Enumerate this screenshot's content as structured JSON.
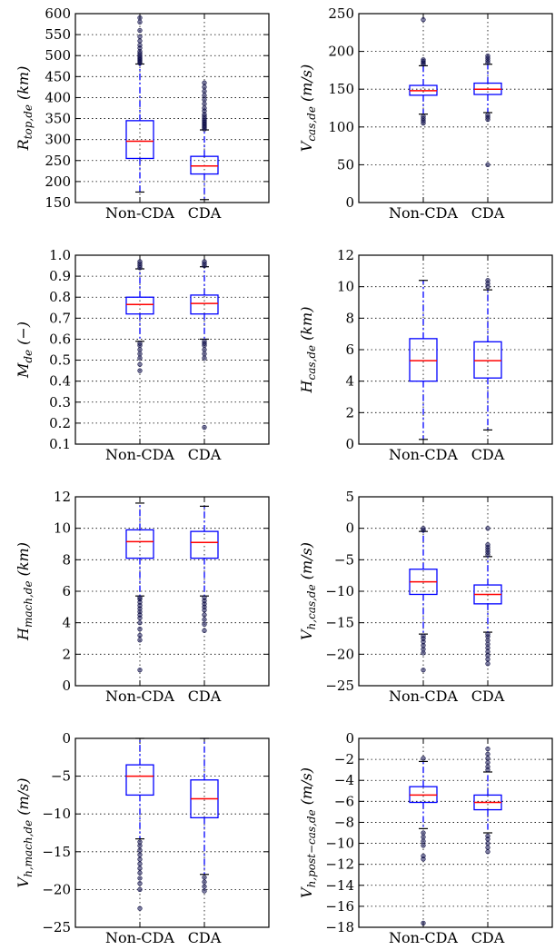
{
  "chart_data": [
    {
      "type": "boxplot",
      "ylabel": {
        "main": "R",
        "sub": "top,de",
        "unit": "(km)"
      },
      "ylim": [
        150,
        600
      ],
      "yticks": [
        150,
        200,
        250,
        300,
        350,
        400,
        450,
        500,
        550,
        600
      ],
      "grid": true,
      "categories": [
        "Non-CDA",
        "CDA"
      ],
      "boxes": [
        {
          "category": "Non-CDA",
          "q1": 255,
          "median": 296,
          "q3": 345,
          "whisker_low": 175,
          "whisker_high": 480,
          "outliers": [
            482,
            485,
            488,
            490,
            493,
            496,
            500,
            505,
            510,
            518,
            525,
            535,
            545,
            560,
            580,
            590
          ]
        },
        {
          "category": "CDA",
          "q1": 218,
          "median": 237,
          "q3": 260,
          "whisker_low": 157,
          "whisker_high": 323,
          "outliers": [
            325,
            328,
            331,
            334,
            337,
            340,
            343,
            346,
            350,
            355,
            360,
            368,
            375,
            385,
            395,
            405,
            415,
            425,
            435
          ]
        }
      ]
    },
    {
      "type": "boxplot",
      "ylabel": {
        "main": "V",
        "sub": "cas,de",
        "unit": "(m/s)"
      },
      "ylim": [
        0,
        250
      ],
      "yticks": [
        0,
        50,
        100,
        150,
        200,
        250
      ],
      "grid": true,
      "categories": [
        "Non-CDA",
        "CDA"
      ],
      "boxes": [
        {
          "category": "Non-CDA",
          "q1": 142,
          "median": 148,
          "q3": 155,
          "whisker_low": 117,
          "whisker_high": 181,
          "outliers": [
            105,
            108,
            111,
            114,
            183,
            185,
            187,
            189,
            242
          ]
        },
        {
          "category": "CDA",
          "q1": 143,
          "median": 150,
          "q3": 158,
          "whisker_low": 119,
          "whisker_high": 183,
          "outliers": [
            50,
            110,
            113,
            116,
            185,
            188,
            191,
            194
          ]
        }
      ]
    },
    {
      "type": "boxplot",
      "ylabel": {
        "main": "M",
        "sub": "de",
        "unit": "(−)"
      },
      "ylim": [
        0.1,
        1.0
      ],
      "yticks": [
        0.1,
        0.2,
        0.3,
        0.4,
        0.5,
        0.6,
        0.7,
        0.8,
        0.9,
        1.0
      ],
      "grid": true,
      "categories": [
        "Non-CDA",
        "CDA"
      ],
      "boxes": [
        {
          "category": "Non-CDA",
          "q1": 0.72,
          "median": 0.765,
          "q3": 0.8,
          "whisker_low": 0.59,
          "whisker_high": 0.935,
          "outliers": [
            0.45,
            0.48,
            0.51,
            0.53,
            0.55,
            0.57,
            0.58,
            0.94,
            0.95,
            0.96,
            0.97
          ]
        },
        {
          "category": "CDA",
          "q1": 0.72,
          "median": 0.77,
          "q3": 0.81,
          "whisker_low": 0.6,
          "whisker_high": 0.945,
          "outliers": [
            0.18,
            0.51,
            0.53,
            0.55,
            0.57,
            0.58,
            0.59,
            0.95,
            0.96,
            0.97
          ]
        }
      ]
    },
    {
      "type": "boxplot",
      "ylabel": {
        "main": "H",
        "sub": "cas,de",
        "unit": "(km)"
      },
      "ylim": [
        0,
        12
      ],
      "yticks": [
        0,
        2,
        4,
        6,
        8,
        10,
        12
      ],
      "grid": true,
      "categories": [
        "Non-CDA",
        "CDA"
      ],
      "boxes": [
        {
          "category": "Non-CDA",
          "q1": 4.0,
          "median": 5.3,
          "q3": 6.7,
          "whisker_low": 0.3,
          "whisker_high": 10.4,
          "outliers": []
        },
        {
          "category": "CDA",
          "q1": 4.2,
          "median": 5.3,
          "q3": 6.5,
          "whisker_low": 0.9,
          "whisker_high": 9.8,
          "outliers": [
            10.0,
            10.2,
            10.4
          ]
        }
      ]
    },
    {
      "type": "boxplot",
      "ylabel": {
        "main": "H",
        "sub": "mach,de",
        "unit": "(km)"
      },
      "ylim": [
        0,
        12
      ],
      "yticks": [
        0,
        2,
        4,
        6,
        8,
        10,
        12
      ],
      "grid": true,
      "categories": [
        "Non-CDA",
        "CDA"
      ],
      "boxes": [
        {
          "category": "Non-CDA",
          "q1": 8.1,
          "median": 9.15,
          "q3": 9.9,
          "whisker_low": 5.7,
          "whisker_high": 11.6,
          "outliers": [
            1.0,
            2.9,
            3.2,
            3.6,
            4.0,
            4.3,
            4.5,
            4.7,
            4.9,
            5.1,
            5.3,
            5.5,
            5.6
          ]
        },
        {
          "category": "CDA",
          "q1": 8.1,
          "median": 9.1,
          "q3": 9.8,
          "whisker_low": 5.7,
          "whisker_high": 11.4,
          "outliers": [
            3.5,
            3.9,
            4.2,
            4.5,
            4.8,
            5.0,
            5.2,
            5.4,
            5.6
          ]
        }
      ]
    },
    {
      "type": "boxplot",
      "ylabel": {
        "main": "V",
        "sub": "h,cas,de",
        "unit": "(m/s)"
      },
      "ylim": [
        -25,
        5
      ],
      "yticks": [
        -25,
        -20,
        -15,
        -10,
        -5,
        0,
        5
      ],
      "grid": true,
      "categories": [
        "Non-CDA",
        "CDA"
      ],
      "boxes": [
        {
          "category": "Non-CDA",
          "q1": -10.5,
          "median": -8.5,
          "q3": -6.5,
          "whisker_low": -16.8,
          "whisker_high": -0.5,
          "outliers": [
            -22.5,
            -19.8,
            -19.2,
            -18.6,
            -18.0,
            -17.5,
            -17.1,
            -0.3,
            0.0
          ]
        },
        {
          "category": "CDA",
          "q1": -12.0,
          "median": -10.5,
          "q3": -9.0,
          "whisker_low": -16.5,
          "whisker_high": -4.5,
          "outliers": [
            -21.5,
            -20.8,
            -20.2,
            -19.6,
            -19.0,
            -18.4,
            -17.8,
            -17.2,
            -16.8,
            -4.2,
            -3.8,
            -3.4,
            -3.0,
            -2.6,
            0.0
          ]
        }
      ]
    },
    {
      "type": "boxplot",
      "ylabel": {
        "main": "V",
        "sub": "h,mach,de",
        "unit": "(m/s)"
      },
      "ylim": [
        -25,
        0
      ],
      "yticks": [
        -25,
        -20,
        -15,
        -10,
        -5,
        0
      ],
      "grid": true,
      "categories": [
        "Non-CDA",
        "CDA"
      ],
      "boxes": [
        {
          "category": "Non-CDA",
          "q1": -7.5,
          "median": -5.0,
          "q3": -3.5,
          "whisker_low": -13.3,
          "whisker_high": 0,
          "outliers": [
            -22.5,
            -20.0,
            -19.2,
            -18.5,
            -17.8,
            -17.2,
            -16.6,
            -16.0,
            -15.4,
            -14.8,
            -14.2,
            -13.7
          ]
        },
        {
          "category": "CDA",
          "q1": -10.5,
          "median": -8.0,
          "q3": -5.5,
          "whisker_low": -18.0,
          "whisker_high": 0,
          "outliers": [
            -20.2,
            -19.6,
            -19.0,
            -18.4
          ]
        }
      ]
    },
    {
      "type": "boxplot",
      "ylabel": {
        "main": "V",
        "sub": "h,post−cas,de",
        "unit": "(m/s)"
      },
      "ylim": [
        -18,
        0
      ],
      "yticks": [
        -18,
        -16,
        -14,
        -12,
        -10,
        -8,
        -6,
        -4,
        -2,
        0
      ],
      "grid": true,
      "categories": [
        "Non-CDA",
        "CDA"
      ],
      "boxes": [
        {
          "category": "Non-CDA",
          "q1": -6.1,
          "median": -5.4,
          "q3": -4.6,
          "whisker_low": -8.6,
          "whisker_high": -2.2,
          "outliers": [
            -17.6,
            -11.5,
            -11.2,
            -10.2,
            -9.8,
            -9.4,
            -9.0,
            -1.9
          ]
        },
        {
          "category": "CDA",
          "q1": -6.8,
          "median": -6.1,
          "q3": -5.4,
          "whisker_low": -9.0,
          "whisker_high": -3.2,
          "outliers": [
            -10.8,
            -10.4,
            -10.0,
            -9.6,
            -9.3,
            -3.0,
            -2.7,
            -2.3,
            -1.9,
            -1.5,
            -1.0
          ]
        }
      ]
    }
  ]
}
